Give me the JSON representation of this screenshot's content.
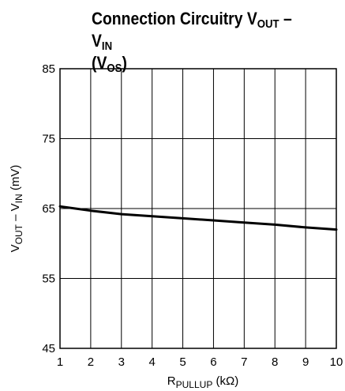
{
  "chart_data": {
    "type": "line",
    "title": {
      "part1": "Connection Circuitry V",
      "sub1": "OUT",
      "part2": " – V",
      "sub2": "IN",
      "part3": "(V",
      "sub3": "OS",
      "part4": ")"
    },
    "xlabel": {
      "main": "R",
      "sub": "PULLUP",
      "unit": " (kΩ)"
    },
    "ylabel": {
      "a": "V",
      "a_sub": "OUT",
      "b": " – V",
      "b_sub": "IN",
      "unit": " (mV)"
    },
    "xlim": [
      1,
      10
    ],
    "ylim": [
      45,
      85
    ],
    "xticks": [
      "1",
      "2",
      "3",
      "4",
      "5",
      "6",
      "7",
      "8",
      "9",
      "10"
    ],
    "yticks": [
      "45",
      "55",
      "65",
      "75",
      "85"
    ],
    "grid": true,
    "series": [
      {
        "x": [
          1,
          1.5,
          2,
          3,
          4,
          5,
          6,
          7,
          8,
          9,
          10
        ],
        "values": [
          65.3,
          65.0,
          64.7,
          64.2,
          63.9,
          63.6,
          63.3,
          63.0,
          62.7,
          62.3,
          62.0
        ]
      }
    ]
  }
}
